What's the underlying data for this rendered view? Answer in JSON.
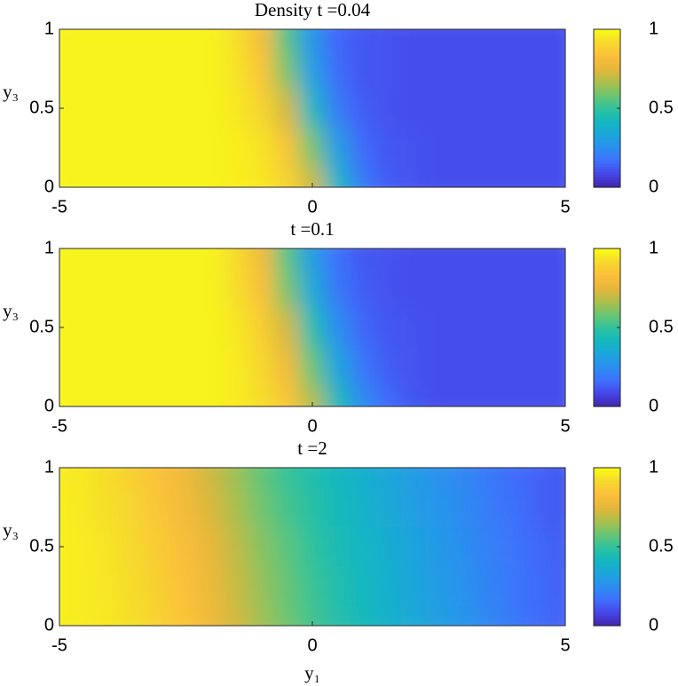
{
  "chart_data": [
    {
      "type": "heatmap",
      "title": "Density t =0.04",
      "ylabel": "y₃",
      "x": [
        -5,
        -4.5,
        -4,
        -3.5,
        -3,
        -2.5,
        -2,
        -1.5,
        -1,
        -0.5,
        0,
        0.5,
        1,
        1.5,
        2,
        2.5,
        3,
        3.5,
        4,
        4.5,
        5
      ],
      "y": [
        0,
        0.25,
        0.5,
        0.75,
        1
      ],
      "z": [
        [
          0.98,
          0.98,
          0.98,
          0.98,
          0.98,
          0.98,
          0.98,
          0.97,
          0.95,
          0.9,
          0.72,
          0.42,
          0.2,
          0.13,
          0.11,
          0.1,
          0.1,
          0.1,
          0.1,
          0.1,
          0.1
        ],
        [
          0.98,
          0.98,
          0.98,
          0.98,
          0.98,
          0.98,
          0.98,
          0.97,
          0.94,
          0.85,
          0.6,
          0.31,
          0.16,
          0.12,
          0.11,
          0.1,
          0.1,
          0.1,
          0.1,
          0.1,
          0.1
        ],
        [
          0.98,
          0.98,
          0.98,
          0.98,
          0.98,
          0.98,
          0.98,
          0.95,
          0.9,
          0.72,
          0.42,
          0.2,
          0.13,
          0.11,
          0.1,
          0.1,
          0.1,
          0.1,
          0.1,
          0.1,
          0.1
        ],
        [
          0.98,
          0.98,
          0.98,
          0.98,
          0.98,
          0.98,
          0.98,
          0.94,
          0.85,
          0.6,
          0.31,
          0.16,
          0.12,
          0.11,
          0.1,
          0.1,
          0.1,
          0.1,
          0.1,
          0.1,
          0.1
        ],
        [
          0.98,
          0.98,
          0.98,
          0.98,
          0.98,
          0.98,
          0.98,
          0.93,
          0.81,
          0.54,
          0.27,
          0.15,
          0.12,
          0.11,
          0.1,
          0.1,
          0.1,
          0.1,
          0.1,
          0.1,
          0.1
        ]
      ],
      "xlim": [
        -5,
        5
      ],
      "xticks": [
        -5,
        0,
        5
      ],
      "ylim": [
        0,
        1
      ],
      "yticks": [
        0,
        0.5,
        1
      ],
      "clim": [
        0,
        1
      ],
      "cticks": [
        0,
        0.5,
        1
      ],
      "colormap": [
        "#3e26a8",
        "#4744e8",
        "#3f70fd",
        "#2b8ef0",
        "#1ca5dc",
        "#12b7c0",
        "#2fc29c",
        "#6bc572",
        "#aebf4b",
        "#e6b63a",
        "#fbbf3b",
        "#f6d92d",
        "#f9fb15"
      ]
    },
    {
      "type": "heatmap",
      "title": "t =0.1",
      "ylabel": "y₃",
      "x": [
        -5,
        -4.5,
        -4,
        -3.5,
        -3,
        -2.5,
        -2,
        -1.5,
        -1,
        -0.5,
        0,
        0.5,
        1,
        1.5,
        2,
        2.5,
        3,
        3.5,
        4,
        4.5,
        5
      ],
      "y": [
        0,
        0.25,
        0.5,
        0.75,
        1
      ],
      "z": [
        [
          0.98,
          0.98,
          0.98,
          0.98,
          0.98,
          0.98,
          0.98,
          0.96,
          0.93,
          0.86,
          0.68,
          0.45,
          0.25,
          0.16,
          0.12,
          0.1,
          0.1,
          0.1,
          0.1,
          0.1,
          0.1
        ],
        [
          0.98,
          0.98,
          0.98,
          0.98,
          0.98,
          0.98,
          0.98,
          0.96,
          0.91,
          0.8,
          0.58,
          0.34,
          0.19,
          0.13,
          0.11,
          0.1,
          0.1,
          0.1,
          0.1,
          0.1,
          0.1
        ],
        [
          0.98,
          0.98,
          0.98,
          0.98,
          0.98,
          0.98,
          0.98,
          0.95,
          0.88,
          0.72,
          0.46,
          0.25,
          0.15,
          0.12,
          0.11,
          0.1,
          0.1,
          0.1,
          0.1,
          0.1,
          0.1
        ],
        [
          0.98,
          0.98,
          0.98,
          0.98,
          0.98,
          0.98,
          0.98,
          0.93,
          0.83,
          0.6,
          0.35,
          0.19,
          0.13,
          0.11,
          0.1,
          0.1,
          0.1,
          0.1,
          0.1,
          0.1,
          0.1
        ],
        [
          0.98,
          0.98,
          0.98,
          0.98,
          0.98,
          0.98,
          0.98,
          0.92,
          0.79,
          0.55,
          0.3,
          0.17,
          0.12,
          0.11,
          0.1,
          0.1,
          0.1,
          0.1,
          0.1,
          0.1,
          0.1
        ]
      ],
      "xlim": [
        -5,
        5
      ],
      "xticks": [
        -5,
        0,
        5
      ],
      "ylim": [
        0,
        1
      ],
      "yticks": [
        0,
        0.5,
        1
      ],
      "clim": [
        0,
        1
      ],
      "cticks": [
        0,
        0.5,
        1
      ],
      "colormap": [
        "#3e26a8",
        "#4744e8",
        "#3f70fd",
        "#2b8ef0",
        "#1ca5dc",
        "#12b7c0",
        "#2fc29c",
        "#6bc572",
        "#aebf4b",
        "#e6b63a",
        "#fbbf3b",
        "#f6d92d",
        "#f9fb15"
      ]
    },
    {
      "type": "heatmap",
      "title": "t =2",
      "ylabel": "y₃",
      "xlabel": "y₁",
      "x": [
        -5,
        -4.5,
        -4,
        -3.5,
        -3,
        -2.5,
        -2,
        -1.5,
        -1,
        -0.5,
        0,
        0.5,
        1,
        1.5,
        2,
        2.5,
        3,
        3.5,
        4,
        4.5,
        5
      ],
      "y": [
        0,
        0.25,
        0.5,
        0.75,
        1
      ],
      "z": [
        [
          0.97,
          0.96,
          0.95,
          0.93,
          0.89,
          0.85,
          0.79,
          0.72,
          0.65,
          0.59,
          0.53,
          0.47,
          0.43,
          0.39,
          0.35,
          0.31,
          0.27,
          0.23,
          0.19,
          0.16,
          0.14
        ],
        [
          0.97,
          0.96,
          0.945,
          0.92,
          0.88,
          0.835,
          0.775,
          0.705,
          0.635,
          0.575,
          0.515,
          0.46,
          0.42,
          0.38,
          0.34,
          0.3,
          0.26,
          0.22,
          0.185,
          0.155,
          0.135
        ],
        [
          0.97,
          0.96,
          0.94,
          0.91,
          0.87,
          0.82,
          0.76,
          0.69,
          0.62,
          0.56,
          0.5,
          0.45,
          0.41,
          0.37,
          0.33,
          0.29,
          0.25,
          0.21,
          0.18,
          0.15,
          0.13
        ],
        [
          0.97,
          0.95,
          0.93,
          0.9,
          0.85,
          0.8,
          0.73,
          0.66,
          0.59,
          0.53,
          0.48,
          0.43,
          0.39,
          0.35,
          0.31,
          0.27,
          0.24,
          0.2,
          0.17,
          0.14,
          0.12
        ],
        [
          0.96,
          0.95,
          0.92,
          0.88,
          0.83,
          0.78,
          0.71,
          0.64,
          0.57,
          0.51,
          0.46,
          0.42,
          0.38,
          0.34,
          0.3,
          0.26,
          0.23,
          0.19,
          0.16,
          0.14,
          0.12
        ]
      ],
      "xlim": [
        -5,
        5
      ],
      "xticks": [
        -5,
        0,
        5
      ],
      "ylim": [
        0,
        1
      ],
      "yticks": [
        0,
        0.5,
        1
      ],
      "clim": [
        0,
        1
      ],
      "cticks": [
        0,
        0.5,
        1
      ],
      "colormap": [
        "#3e26a8",
        "#4744e8",
        "#3f70fd",
        "#2b8ef0",
        "#1ca5dc",
        "#12b7c0",
        "#2fc29c",
        "#6bc572",
        "#aebf4b",
        "#e6b63a",
        "#fbbf3b",
        "#f6d92d",
        "#f9fb15"
      ]
    }
  ]
}
